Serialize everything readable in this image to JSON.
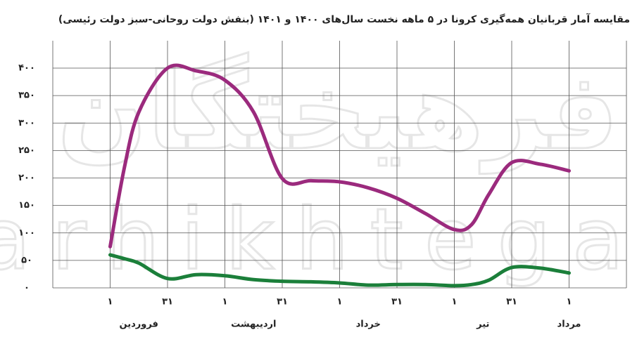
{
  "chart_data": {
    "type": "line",
    "title": "مقایسه آمار قربانیان همه‌گیری کرونا در ۵ ماهه نخست سال‌های ۱۴۰۰ و ۱۴۰۱ (بنفش دولت روحانی-سبز دولت رئیسی)",
    "watermark": [
      "فرهیختگان",
      "farhikhtegan"
    ],
    "x": [
      1,
      1.25,
      1.5,
      2,
      2.5,
      3,
      3.5,
      4,
      4.5,
      5,
      5.5,
      6,
      6.5,
      7,
      7.3,
      7.6,
      8,
      8.5,
      9
    ],
    "series": [
      {
        "color": "#9b2a7d",
        "values": [
          75,
          220,
          320,
          400,
          395,
          378,
          320,
          199,
          195,
          193,
          182,
          163,
          135,
          106,
          115,
          170,
          228,
          225,
          213
        ]
      },
      {
        "color": "#1b7f3a",
        "values": [
          60,
          53,
          45,
          17,
          24,
          22,
          15,
          12,
          11,
          9,
          5,
          6,
          6,
          4,
          6,
          14,
          37,
          36,
          27
        ]
      }
    ],
    "xlim": [
      0,
      10
    ],
    "xticks": [
      {
        "value": 1,
        "label": "۱"
      },
      {
        "value": 2,
        "label": "۳۱"
      },
      {
        "value": 3,
        "label": "۱"
      },
      {
        "value": 4,
        "label": "۳۱"
      },
      {
        "value": 5,
        "label": "۱"
      },
      {
        "value": 6,
        "label": "۳۱"
      },
      {
        "value": 7,
        "label": "۱"
      },
      {
        "value": 8,
        "label": "۳۱"
      },
      {
        "value": 9,
        "label": "۱"
      }
    ],
    "months": [
      {
        "value": 1.5,
        "label": "فروردین"
      },
      {
        "value": 3.5,
        "label": "اردیبهشت"
      },
      {
        "value": 5.5,
        "label": "خرداد"
      },
      {
        "value": 7.5,
        "label": "تیر"
      },
      {
        "value": 9,
        "label": "مرداد"
      }
    ],
    "ylim": [
      0,
      400
    ],
    "yticks": [
      {
        "value": 0,
        "label": "۰"
      },
      {
        "value": 50,
        "label": "۵۰"
      },
      {
        "value": 100,
        "label": "۱۰۰"
      },
      {
        "value": 150,
        "label": "۱۵۰"
      },
      {
        "value": 200,
        "label": "۲۰۰"
      },
      {
        "value": 250,
        "label": "۲۵۰"
      },
      {
        "value": 300,
        "label": "۳۰۰"
      },
      {
        "value": 350,
        "label": "۳۵۰"
      },
      {
        "value": 400,
        "label": "۴۰۰"
      }
    ],
    "grid": true
  }
}
